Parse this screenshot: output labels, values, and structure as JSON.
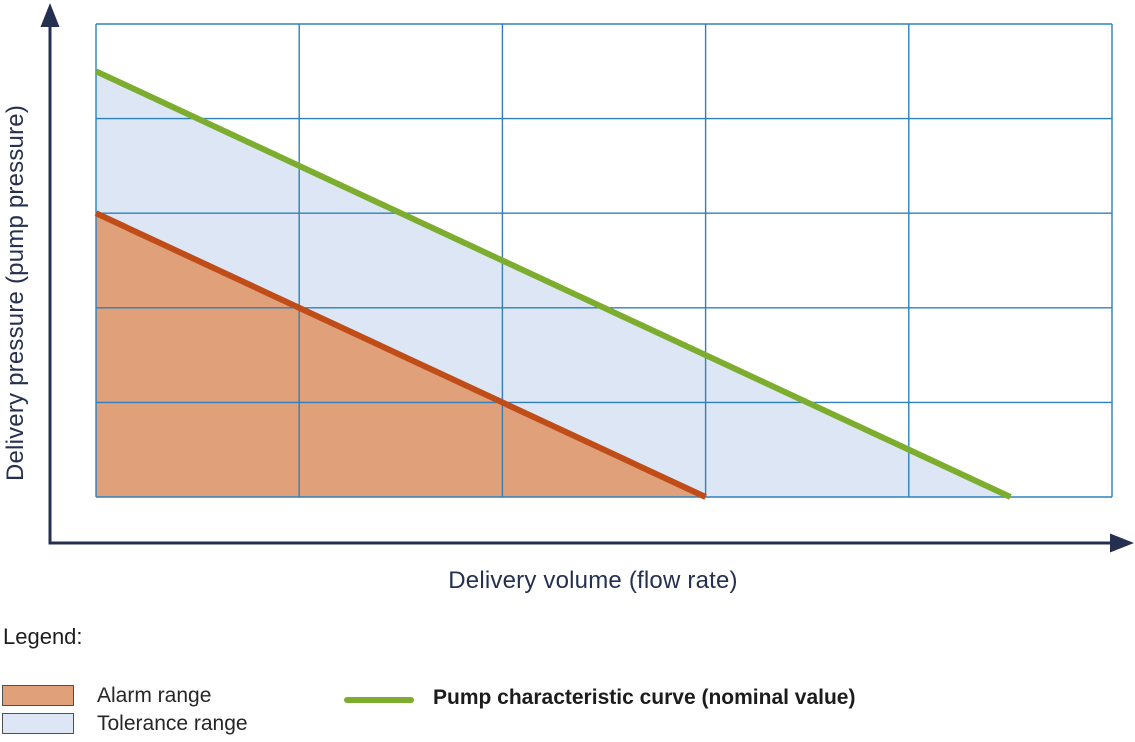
{
  "chart_data": {
    "type": "area",
    "title": "",
    "xlabel": "Delivery volume (flow rate)",
    "ylabel": "Delivery pressure (pump pressure)",
    "x_range": [
      0,
      5
    ],
    "y_range": [
      0,
      5
    ],
    "grid": {
      "on": true,
      "cols": 5,
      "rows": 5,
      "color": "#2e80bd"
    },
    "axes": {
      "color": "#253050",
      "tick_labels": "none (qualitative axes)"
    },
    "series": [
      {
        "name": "Tolerance range",
        "type": "area",
        "fill_color": "#dde6f4",
        "points": [
          [
            0,
            4.5
          ],
          [
            4.5,
            0
          ],
          [
            0,
            0
          ]
        ]
      },
      {
        "name": "Alarm range",
        "type": "area",
        "fill_color": "#dfa07a",
        "boundary_color": "#c04c18",
        "boundary_width": 6,
        "points": [
          [
            0,
            3
          ],
          [
            3,
            0
          ],
          [
            0,
            0
          ]
        ]
      },
      {
        "name": "Pump characteristic curve (nominal value)",
        "type": "line",
        "color": "#7cad2f",
        "width": 6,
        "points": [
          [
            0,
            4.5
          ],
          [
            4.5,
            0
          ]
        ]
      }
    ],
    "legend_position": "below"
  },
  "legend": {
    "title": "Legend:",
    "items": [
      {
        "swatch": "area",
        "color": "#dfa07a",
        "label": "Alarm range"
      },
      {
        "swatch": "area",
        "color": "#dde6f4",
        "label": "Tolerance range"
      },
      {
        "swatch": "line",
        "color": "#7cad2f",
        "label": "Pump characteristic curve (nominal value)"
      }
    ]
  }
}
